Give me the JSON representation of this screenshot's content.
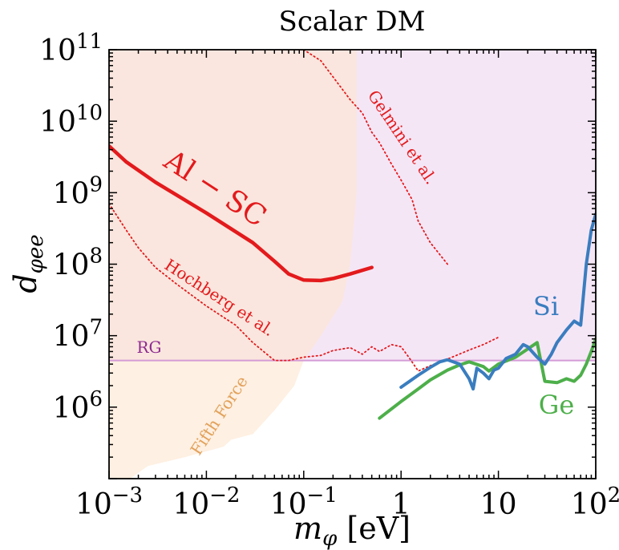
{
  "chart_data": {
    "type": "line",
    "title": "Scalar DM",
    "xlabel": "m_φ [eV]",
    "ylabel": "d_φee",
    "xscale": "log",
    "yscale": "log",
    "xlim": [
      0.001,
      100
    ],
    "ylim": [
      100000,
      100000000000
    ],
    "grid": false,
    "x_tick_labels": [
      {
        "value": 0.001,
        "base": "10",
        "exp": "−3"
      },
      {
        "value": 0.01,
        "base": "10",
        "exp": "−2"
      },
      {
        "value": 0.1,
        "base": "10",
        "exp": "−1"
      },
      {
        "value": 1,
        "base": "1",
        "exp": ""
      },
      {
        "value": 10,
        "base": "10",
        "exp": ""
      },
      {
        "value": 100,
        "base": "10",
        "exp": "2"
      }
    ],
    "y_tick_labels": [
      {
        "value": 1000000,
        "base": "10",
        "exp": "6"
      },
      {
        "value": 10000000,
        "base": "10",
        "exp": "7"
      },
      {
        "value": 100000000,
        "base": "10",
        "exp": "8"
      },
      {
        "value": 1000000000,
        "base": "10",
        "exp": "9"
      },
      {
        "value": 10000000000,
        "base": "10",
        "exp": "10"
      },
      {
        "value": 100000000000,
        "base": "10",
        "exp": "11"
      }
    ],
    "regions": [
      {
        "name": "Fifth Force",
        "label": "Fifth Force",
        "color": "#fde6cf",
        "opacity": 0.6,
        "boundary": [
          [
            0.00165,
            100000
          ],
          [
            0.0025,
            150000
          ],
          [
            0.006,
            200000
          ],
          [
            0.015,
            280000
          ],
          [
            0.018,
            350000
          ],
          [
            0.03,
            420000
          ],
          [
            0.05,
            900000
          ],
          [
            0.08,
            2000000
          ],
          [
            0.1,
            4500000
          ],
          [
            0.15,
            10000000
          ],
          [
            0.25,
            30000000
          ],
          [
            0.3,
            100000000
          ],
          [
            0.33,
            400000000
          ],
          [
            0.35,
            1000000000
          ],
          [
            0.35,
            100000000000
          ]
        ]
      },
      {
        "name": "RG excluded",
        "label": "RG",
        "color": "#e9c8ec",
        "opacity": 0.45,
        "value": 4500000
      }
    ],
    "series": [
      {
        "name": "Al-SC",
        "label": "Al − SC",
        "color": "#e31a1c",
        "style": "solid",
        "points": [
          [
            0.001,
            4500000000
          ],
          [
            0.0015,
            2700000000
          ],
          [
            0.003,
            1400000000
          ],
          [
            0.01,
            520000000
          ],
          [
            0.03,
            200000000
          ],
          [
            0.05,
            110000000
          ],
          [
            0.07,
            73000000
          ],
          [
            0.1,
            60000000
          ],
          [
            0.15,
            59000000
          ],
          [
            0.2,
            63000000
          ],
          [
            0.3,
            73000000
          ],
          [
            0.5,
            90000000
          ]
        ]
      },
      {
        "name": "Hochberg et al.",
        "label": "Hochberg et al.",
        "color": "#e31a1c",
        "style": "dotted",
        "points": [
          [
            0.001,
            700000000
          ],
          [
            0.0015,
            300000000
          ],
          [
            0.002,
            170000000
          ],
          [
            0.003,
            90000000
          ],
          [
            0.005,
            52000000
          ],
          [
            0.01,
            26000000
          ],
          [
            0.02,
            14000000
          ],
          [
            0.03,
            8000000
          ],
          [
            0.05,
            4500000
          ],
          [
            0.07,
            4500000
          ],
          [
            0.1,
            5000000
          ],
          [
            0.15,
            5300000
          ],
          [
            0.2,
            6200000
          ],
          [
            0.3,
            6800000
          ],
          [
            0.4,
            5500000
          ],
          [
            0.5,
            7000000
          ],
          [
            0.6,
            6000000
          ],
          [
            0.8,
            7500000
          ],
          [
            1,
            7000000
          ],
          [
            1.2,
            5000000
          ],
          [
            1.5,
            3200000
          ],
          [
            2,
            3800000
          ],
          [
            3,
            4700000
          ],
          [
            5,
            6300000
          ],
          [
            7,
            7500000
          ],
          [
            10,
            9500000
          ]
        ]
      },
      {
        "name": "Gelmini et al.",
        "label": "Gelmini et al.",
        "color": "#e31a1c",
        "style": "dotted",
        "points": [
          [
            0.1,
            100000000000
          ],
          [
            0.15,
            70000000000
          ],
          [
            0.3,
            20000000000
          ],
          [
            0.4,
            13000000000
          ],
          [
            0.5,
            7000000000
          ],
          [
            0.6,
            5000000000
          ],
          [
            0.8,
            2500000000
          ],
          [
            1,
            1500000000
          ],
          [
            1.3,
            800000000
          ],
          [
            1.5,
            400000000
          ],
          [
            2,
            200000000
          ],
          [
            3,
            100000000
          ]
        ]
      },
      {
        "name": "Si",
        "label": "Si",
        "color": "#3a7dbf",
        "style": "solid",
        "points": [
          [
            1,
            1900000
          ],
          [
            1.5,
            2800000
          ],
          [
            2,
            3600000
          ],
          [
            2.5,
            4300000
          ],
          [
            3,
            4600000
          ],
          [
            4,
            4000000
          ],
          [
            5,
            2500000
          ],
          [
            5.5,
            1800000
          ],
          [
            6,
            3500000
          ],
          [
            7,
            3000000
          ],
          [
            8,
            2500000
          ],
          [
            9,
            3300000
          ],
          [
            10,
            3500000
          ],
          [
            12,
            4800000
          ],
          [
            15,
            5500000
          ],
          [
            18,
            7500000
          ],
          [
            20,
            7000000
          ],
          [
            25,
            5000000
          ],
          [
            30,
            4000000
          ],
          [
            35,
            5500000
          ],
          [
            40,
            8000000
          ],
          [
            50,
            12000000
          ],
          [
            60,
            16000000
          ],
          [
            70,
            14000000
          ],
          [
            80,
            100000000
          ],
          [
            90,
            300000000
          ],
          [
            100,
            500000000
          ]
        ]
      },
      {
        "name": "Ge",
        "label": "Ge",
        "color": "#4daf4a",
        "style": "solid",
        "points": [
          [
            0.6,
            700000
          ],
          [
            1,
            1200000
          ],
          [
            1.5,
            1800000
          ],
          [
            2,
            2400000
          ],
          [
            3,
            3300000
          ],
          [
            4,
            3900000
          ],
          [
            5,
            4300000
          ],
          [
            7,
            3700000
          ],
          [
            8,
            3200000
          ],
          [
            10,
            4000000
          ],
          [
            15,
            5000000
          ],
          [
            20,
            6500000
          ],
          [
            25,
            8000000
          ],
          [
            30,
            2300000
          ],
          [
            40,
            2200000
          ],
          [
            50,
            2500000
          ],
          [
            60,
            2300000
          ],
          [
            70,
            2800000
          ],
          [
            80,
            4000000
          ],
          [
            90,
            6000000
          ],
          [
            100,
            9000000
          ]
        ]
      }
    ]
  }
}
